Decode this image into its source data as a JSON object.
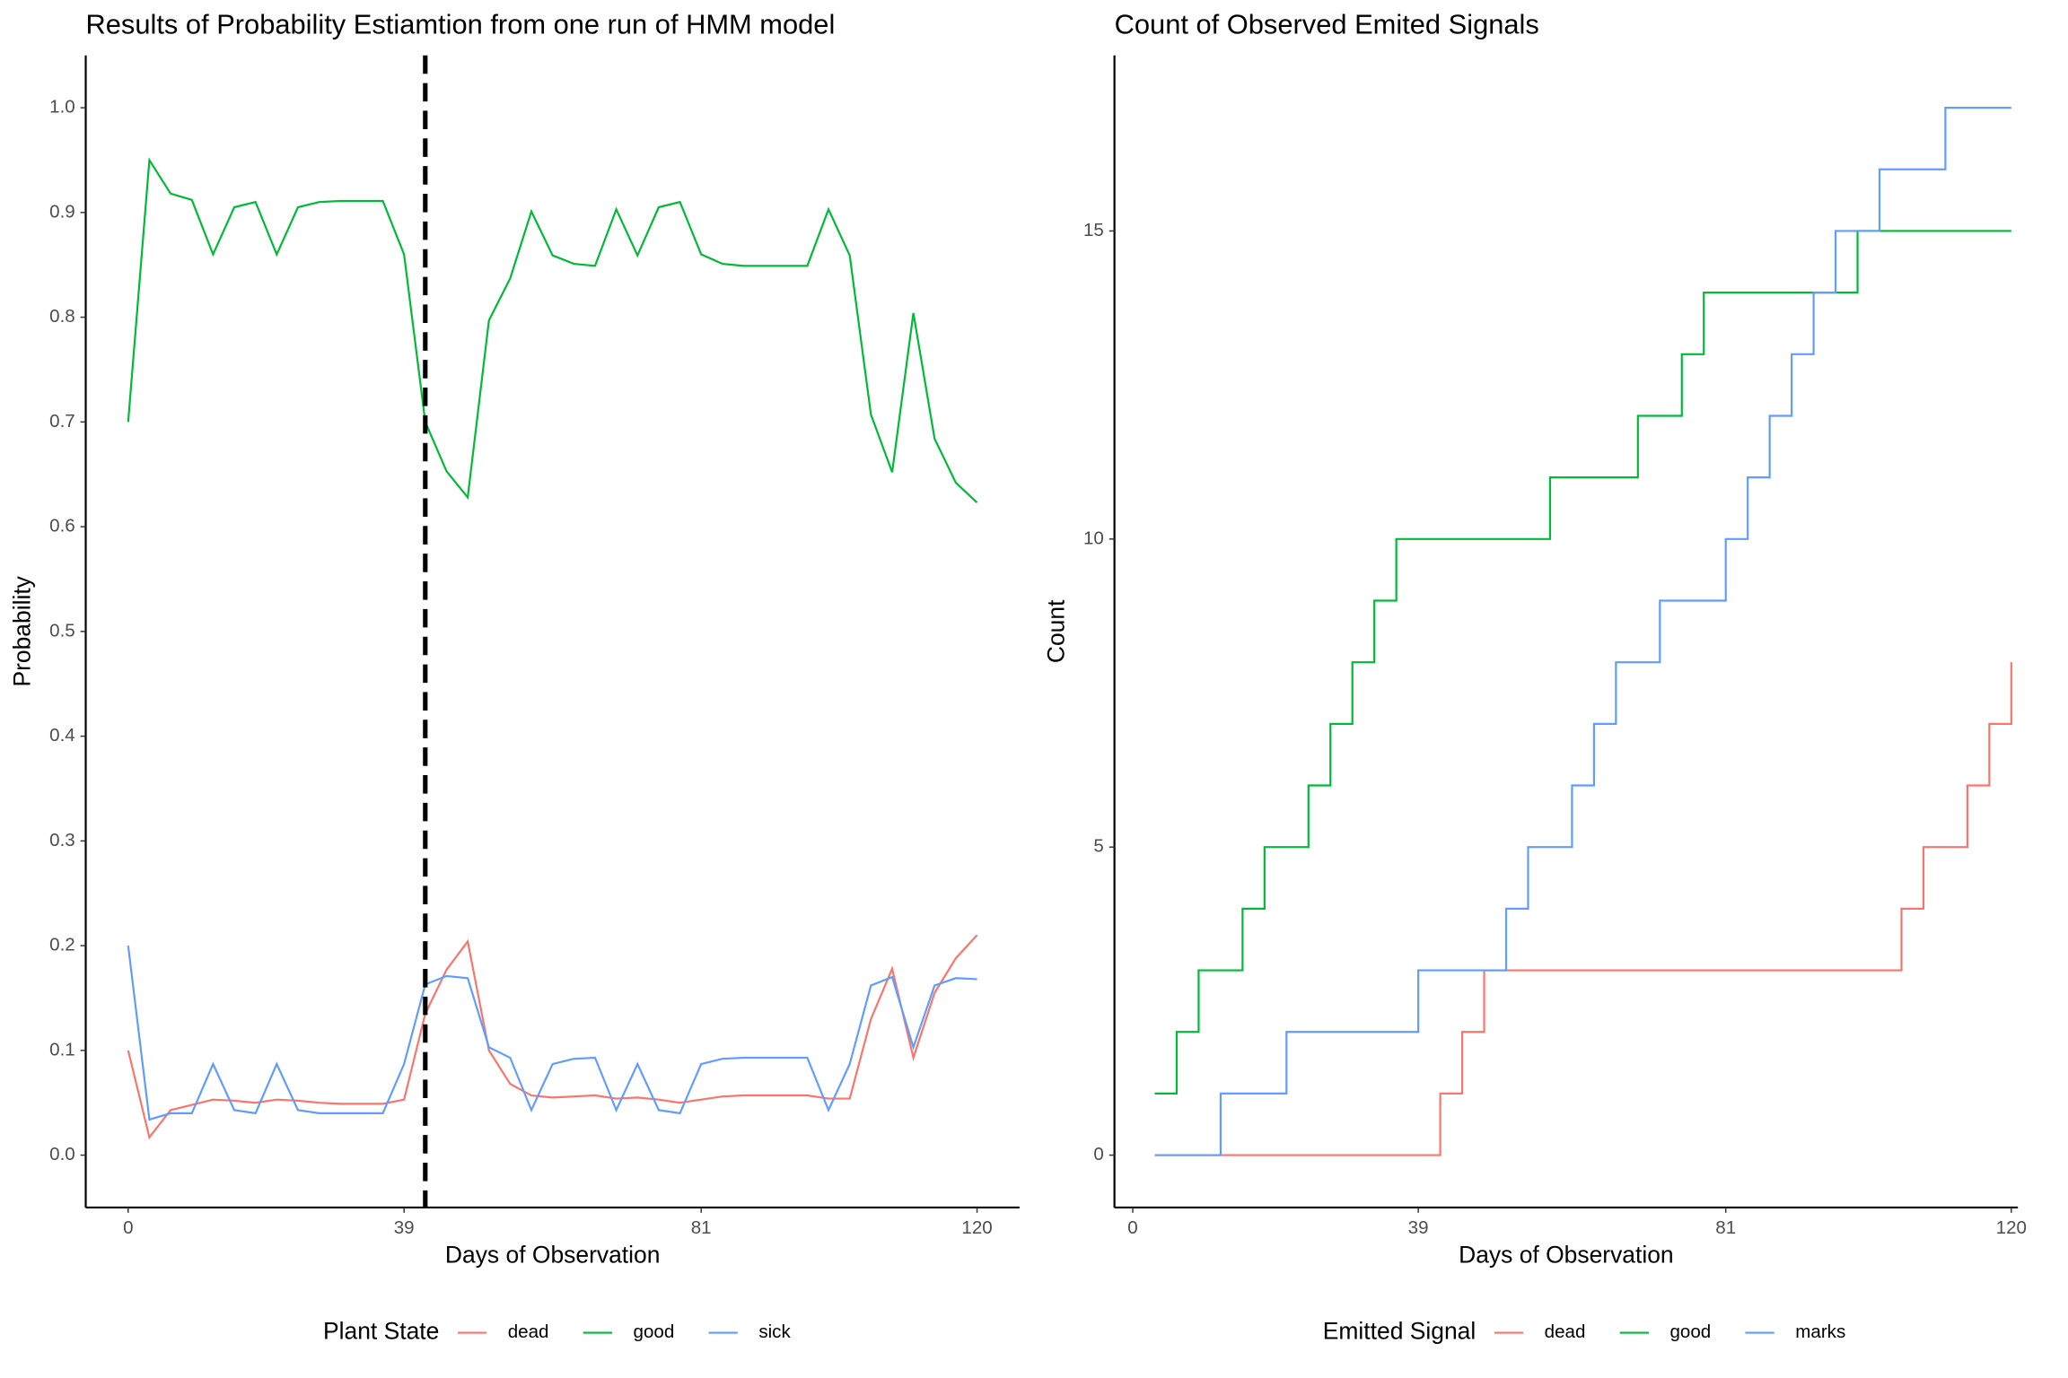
{
  "chart_data": [
    {
      "type": "line",
      "title": "Results of Probability Estiamtion from one run of HMM model",
      "x_label": "Days of Observation",
      "y_label": "Probability",
      "legend_title": "Plant State",
      "legend_position": "bottom",
      "x": [
        0,
        3,
        6,
        9,
        12,
        15,
        18,
        21,
        24,
        27,
        30,
        33,
        36,
        39,
        42,
        45,
        48,
        51,
        54,
        57,
        60,
        63,
        66,
        69,
        72,
        75,
        78,
        81,
        84,
        87,
        90,
        93,
        96,
        99,
        102,
        105,
        108,
        111,
        114,
        117,
        120
      ],
      "series": [
        {
          "name": "dead",
          "color": "#F8766D",
          "values": [
            0.1,
            0.017,
            0.043,
            0.048,
            0.053,
            0.052,
            0.05,
            0.053,
            0.052,
            0.05,
            0.049,
            0.049,
            0.049,
            0.053,
            0.135,
            0.177,
            0.204,
            0.1,
            0.068,
            0.057,
            0.055,
            0.056,
            0.057,
            0.054,
            0.055,
            0.053,
            0.05,
            0.053,
            0.056,
            0.057,
            0.057,
            0.057,
            0.057,
            0.054,
            0.054,
            0.13,
            0.178,
            0.093,
            0.155,
            0.188,
            0.21
          ]
        },
        {
          "name": "good",
          "color": "#00BA38",
          "values": [
            0.7,
            0.95,
            0.918,
            0.912,
            0.86,
            0.905,
            0.91,
            0.86,
            0.905,
            0.91,
            0.911,
            0.911,
            0.911,
            0.86,
            0.7,
            0.653,
            0.628,
            0.797,
            0.837,
            0.901,
            0.859,
            0.851,
            0.849,
            0.903,
            0.859,
            0.905,
            0.91,
            0.86,
            0.851,
            0.849,
            0.849,
            0.849,
            0.849,
            0.903,
            0.859,
            0.707,
            0.652,
            0.804,
            0.684,
            0.642,
            0.623
          ]
        },
        {
          "name": "sick",
          "color": "#619CFF",
          "values": [
            0.2,
            0.034,
            0.04,
            0.04,
            0.087,
            0.043,
            0.04,
            0.087,
            0.043,
            0.04,
            0.04,
            0.04,
            0.04,
            0.087,
            0.163,
            0.171,
            0.169,
            0.103,
            0.093,
            0.043,
            0.087,
            0.092,
            0.093,
            0.043,
            0.087,
            0.043,
            0.04,
            0.087,
            0.092,
            0.093,
            0.093,
            0.093,
            0.093,
            0.043,
            0.087,
            0.162,
            0.17,
            0.103,
            0.162,
            0.169,
            0.168
          ]
        }
      ],
      "vline_x": 42,
      "xlim": [
        -6,
        126
      ],
      "xticks": [
        0,
        39,
        81,
        120
      ],
      "ylim": [
        -0.05,
        1.05
      ],
      "yticks": [
        {
          "value": 0,
          "label": "0.0"
        },
        0.1,
        0.2,
        0.3,
        0.4,
        0.5,
        0.6,
        0.7,
        0.8,
        0.9,
        {
          "value": 1,
          "label": "1.0"
        }
      ]
    },
    {
      "type": "step",
      "title": "Count of Observed Emited Signals",
      "x_label": "Days of Observation",
      "y_label": "Count",
      "legend_title": "Emitted Signal",
      "legend_position": "bottom",
      "series": [
        {
          "name": "dead",
          "color": "#F8766D",
          "x": [
            3,
            42,
            45,
            48,
            105,
            108,
            114,
            117,
            120
          ],
          "values": [
            0,
            1,
            2,
            3,
            4,
            5,
            6,
            7,
            8
          ]
        },
        {
          "name": "good",
          "color": "#00BA38",
          "x": [
            3,
            6,
            9,
            15,
            18,
            24,
            27,
            30,
            33,
            36,
            57,
            69,
            75,
            78,
            99,
            120
          ],
          "values": [
            1,
            2,
            3,
            4,
            5,
            6,
            7,
            8,
            9,
            10,
            11,
            12,
            13,
            14,
            15,
            15
          ]
        },
        {
          "name": "marks",
          "color": "#619CFF",
          "x": [
            3,
            12,
            21,
            39,
            51,
            54,
            60,
            63,
            66,
            72,
            81,
            84,
            87,
            90,
            93,
            96,
            102,
            111,
            120
          ],
          "values": [
            0,
            1,
            2,
            3,
            4,
            5,
            6,
            7,
            8,
            9,
            10,
            11,
            12,
            13,
            14,
            15,
            16,
            17,
            17
          ]
        }
      ],
      "xlim": [
        -2.5,
        120.9
      ],
      "xticks": [
        0,
        39,
        81,
        120
      ],
      "ylim": [
        -0.85,
        17.85
      ],
      "yticks": [
        0,
        5,
        10,
        15
      ]
    }
  ]
}
